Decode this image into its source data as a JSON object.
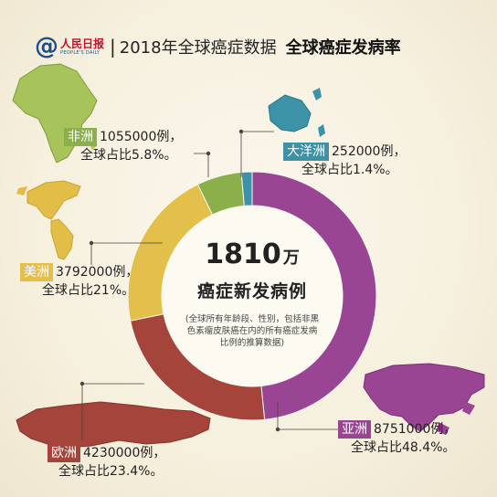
{
  "header": {
    "logo_text": "人民日报",
    "logo_en": "PEOPLE'S DAILY",
    "separator": "|",
    "title": "2018年全球癌症数据",
    "subtitle": "全球癌症发病率"
  },
  "center": {
    "number": "1810",
    "unit": "万",
    "label": "癌症新发病例",
    "note": "(全球所有年龄段、性别，包括非黑色素瘤皮肤癌在内的所有癌症发病比例的推算数据)"
  },
  "chart_data": {
    "type": "pie",
    "title": "全球癌症发病率",
    "categories": [
      "亚洲",
      "欧洲",
      "美洲",
      "非洲",
      "大洋洲"
    ],
    "values": [
      8751000,
      4230000,
      3792000,
      1055000,
      252000
    ],
    "percent": [
      48.4,
      23.4,
      21,
      5.8,
      1.4
    ],
    "colors": [
      "#9a4494",
      "#a5443b",
      "#e3c04c",
      "#8bb04b",
      "#3c93a8"
    ],
    "labels": [
      {
        "region": "亚洲",
        "count": "8751000例，",
        "share": "全球占比48.4%。"
      },
      {
        "region": "欧洲",
        "count": "4230000例，",
        "share": "全球占比23.4%。"
      },
      {
        "region": "美洲",
        "count": "3792000例，",
        "share": "全球占比21%。"
      },
      {
        "region": "非洲",
        "count": "1055000例，",
        "share": "全球占比5.8%。"
      },
      {
        "region": "大洋洲",
        "count": "252000例，",
        "share": "全球占比1.4%。"
      }
    ]
  },
  "maps": {
    "asia_icon": "asia-map-icon",
    "europe_icon": "europe-map-icon",
    "america_icon": "america-map-icon",
    "africa_icon": "africa-map-icon",
    "oceania_icon": "oceania-map-icon"
  }
}
